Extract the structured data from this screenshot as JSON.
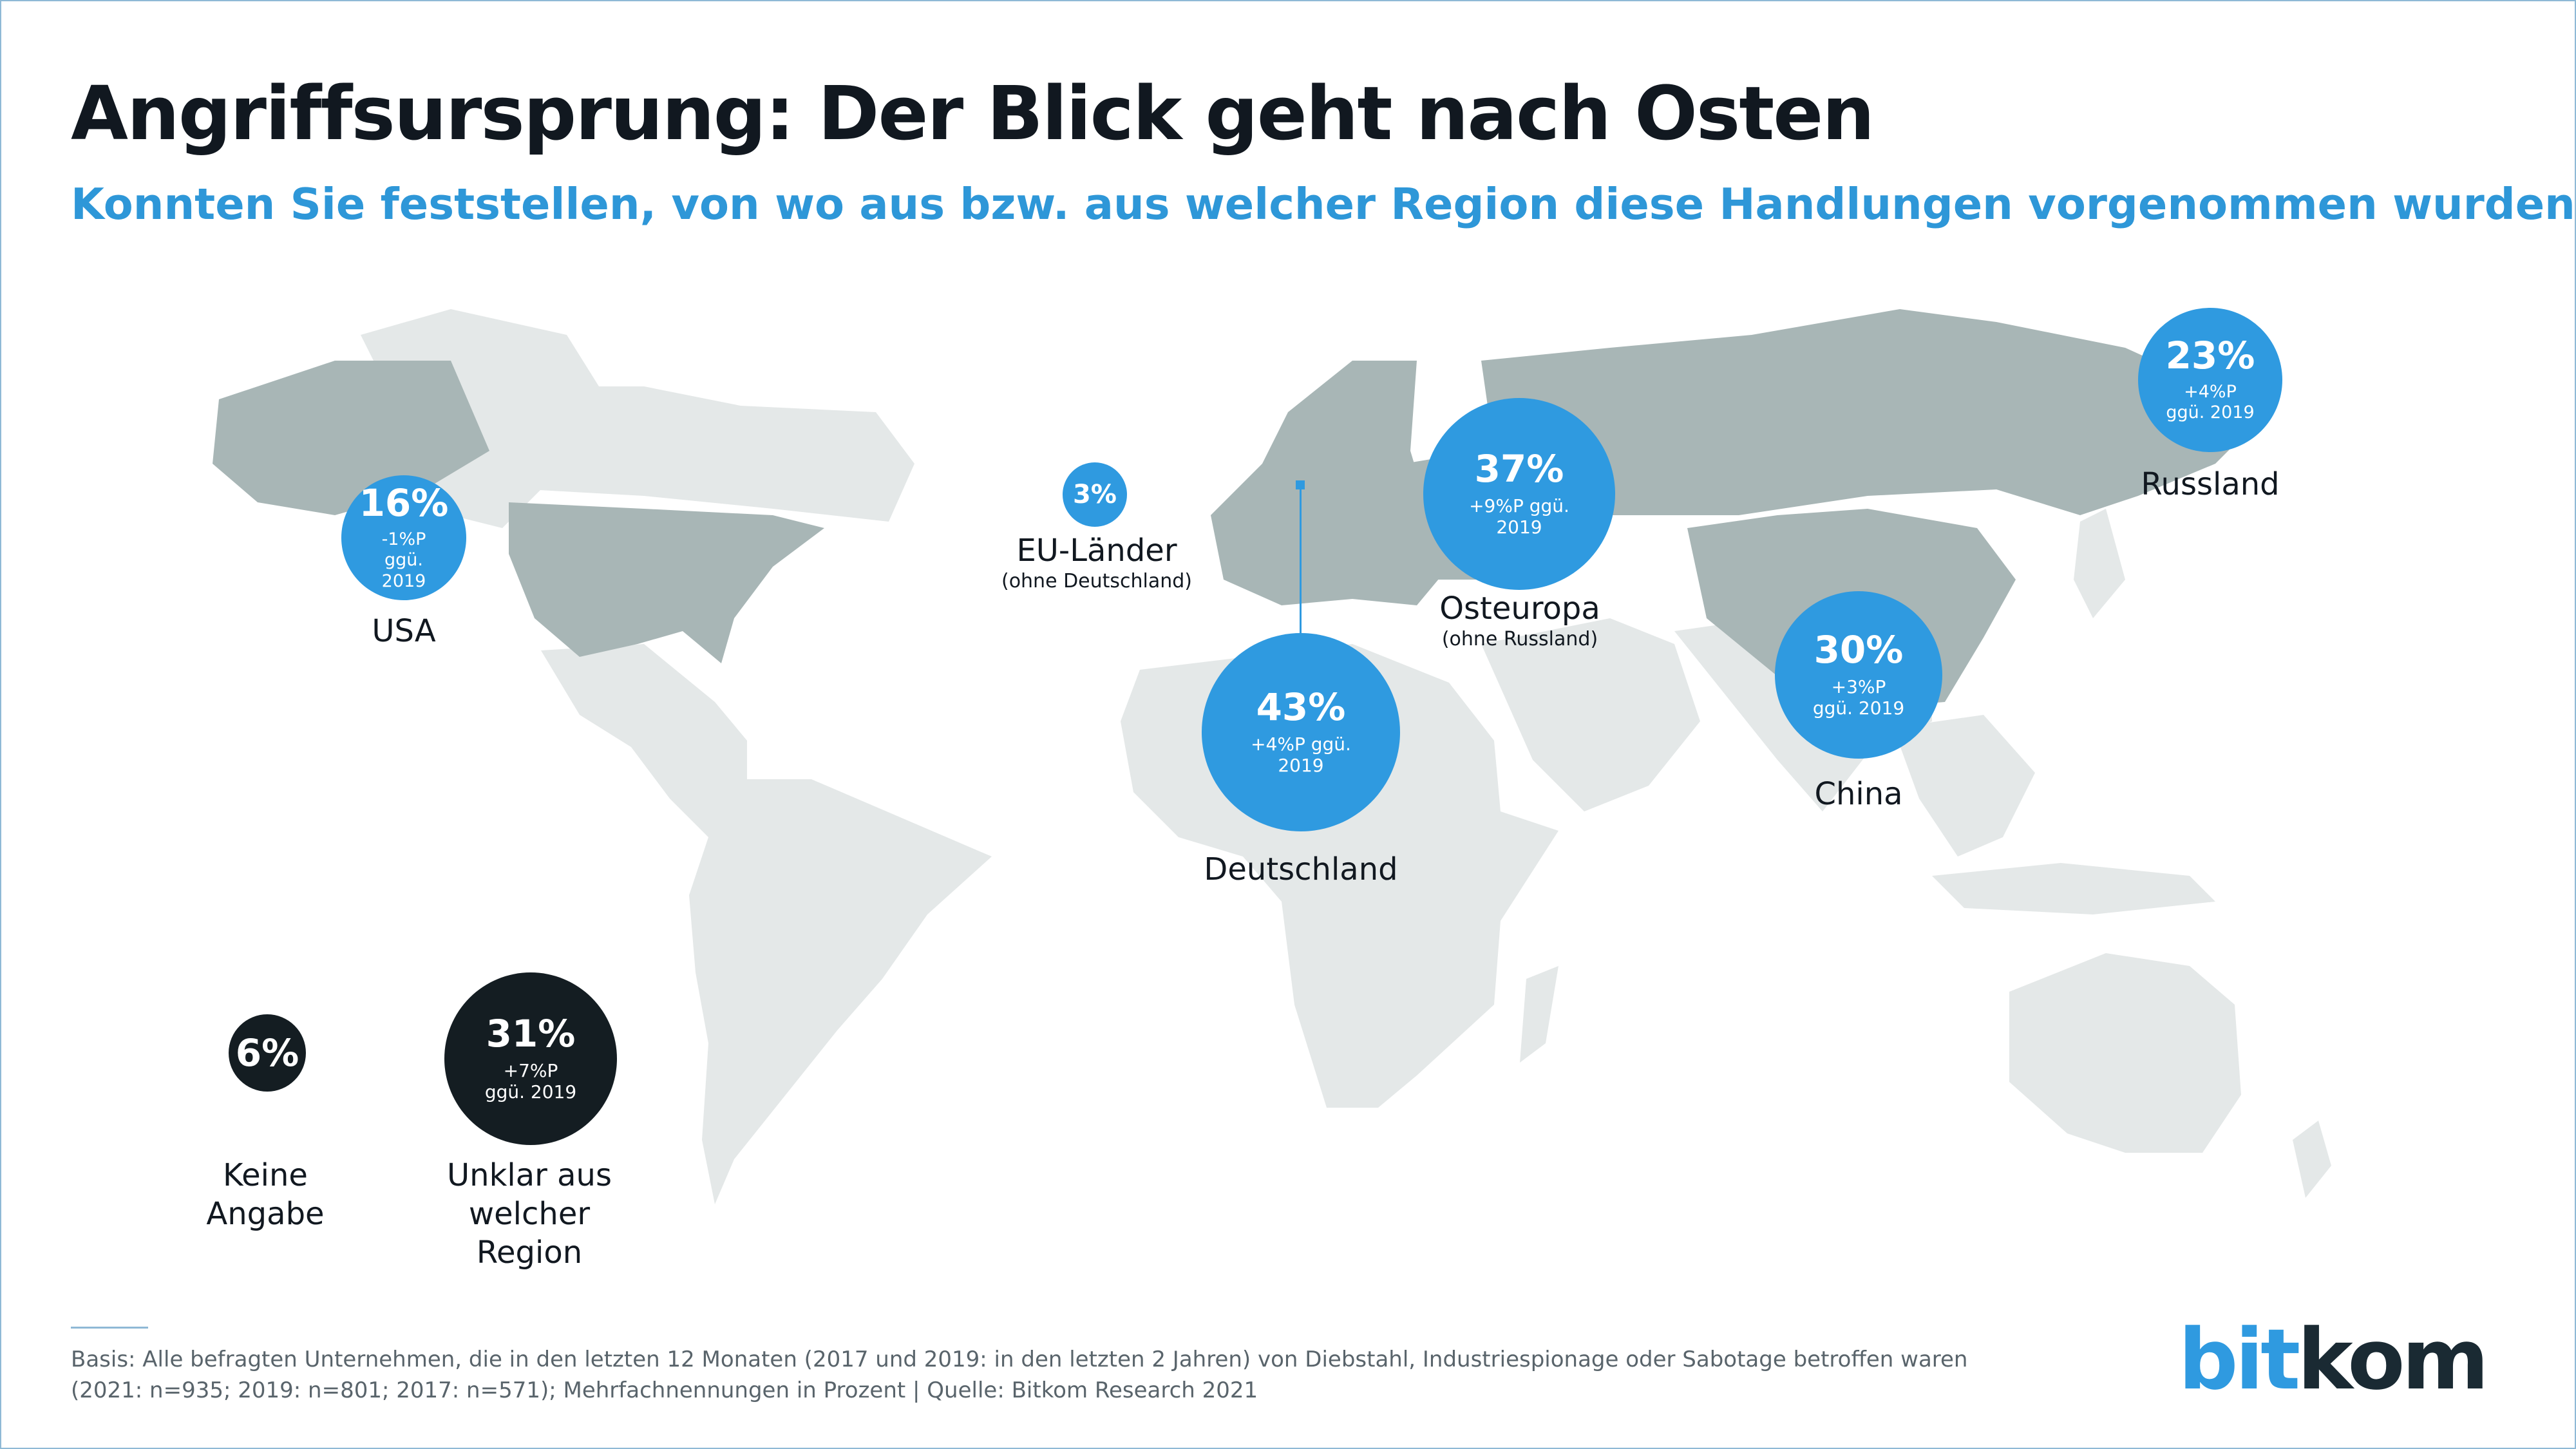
{
  "header": {
    "title": "Angriffsursprung: Der Blick geht nach Osten",
    "subtitle": "Konnten Sie feststellen, von wo aus bzw. aus welcher Region diese Handlungen vorgenommen wurden?"
  },
  "colors": {
    "accent": "#2f9ae0",
    "dark": "#141d22",
    "land_highlight": "#a8b6b6",
    "land_other": "#e4e8e8",
    "title": "#111820"
  },
  "chart_data": {
    "type": "bubble-map",
    "title": "Angriffsursprung: Der Blick geht nach Osten",
    "unit": "%",
    "regions": [
      {
        "name": "Deutschland",
        "value": 43,
        "pct_label": "43%",
        "change": "+4%P ggü. 2019",
        "style": "accent"
      },
      {
        "name": "Osteuropa",
        "note": "(ohne Russland)",
        "value": 37,
        "pct_label": "37%",
        "change": "+9%P ggü. 2019",
        "style": "accent"
      },
      {
        "name": "Unklar aus welcher Region",
        "value": 31,
        "pct_label": "31%",
        "change": "+7%P ggü. 2019",
        "style": "dark"
      },
      {
        "name": "China",
        "value": 30,
        "pct_label": "30%",
        "change": "+3%P ggü. 2019",
        "style": "accent"
      },
      {
        "name": "Russland",
        "value": 23,
        "pct_label": "23%",
        "change": "+4%P ggü. 2019",
        "style": "accent"
      },
      {
        "name": "USA",
        "value": 16,
        "pct_label": "16%",
        "change": "-1%P ggü. 2019",
        "style": "accent"
      },
      {
        "name": "Keine Angabe",
        "value": 6,
        "pct_label": "6%",
        "change": "",
        "style": "dark"
      },
      {
        "name": "EU-Länder",
        "note": "(ohne Deutschland)",
        "value": 3,
        "pct_label": "3%",
        "change": "",
        "style": "accent"
      }
    ]
  },
  "footer": {
    "basis": "Basis: Alle befragten Unternehmen, die in den letzten 12 Monaten (2017 und 2019: in den letzten 2 Jahren) von Diebstahl, Industriespionage oder Sabotage betroffen waren",
    "sample": "(2021: n=935; 2019: n=801; 2017: n=571); Mehrfachnennungen in Prozent | Quelle: Bitkom Research 2021",
    "logo_part1": "bit",
    "logo_part2": "kom"
  }
}
